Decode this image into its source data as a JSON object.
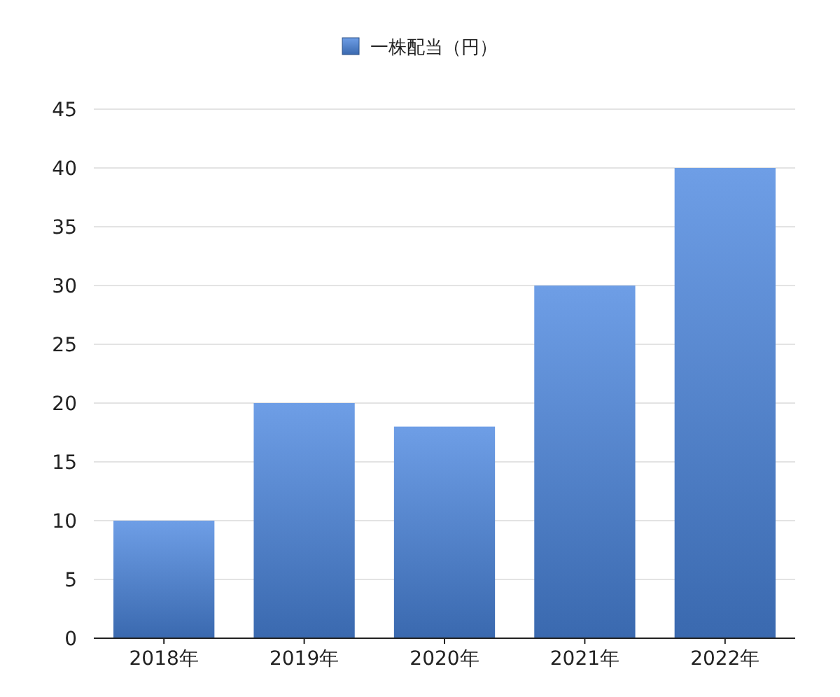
{
  "chart_data": {
    "type": "bar",
    "categories": [
      "2018年",
      "2019年",
      "2020年",
      "2021年",
      "2022年"
    ],
    "series": [
      {
        "name": "一株配当（円）",
        "color": "#4a86e0",
        "values": [
          10,
          20,
          18,
          30,
          40
        ]
      }
    ],
    "ylim": [
      0,
      45
    ],
    "yticks": [
      0,
      5,
      10,
      15,
      20,
      25,
      30,
      35,
      40,
      45
    ],
    "grid": "y",
    "legend": "top"
  }
}
